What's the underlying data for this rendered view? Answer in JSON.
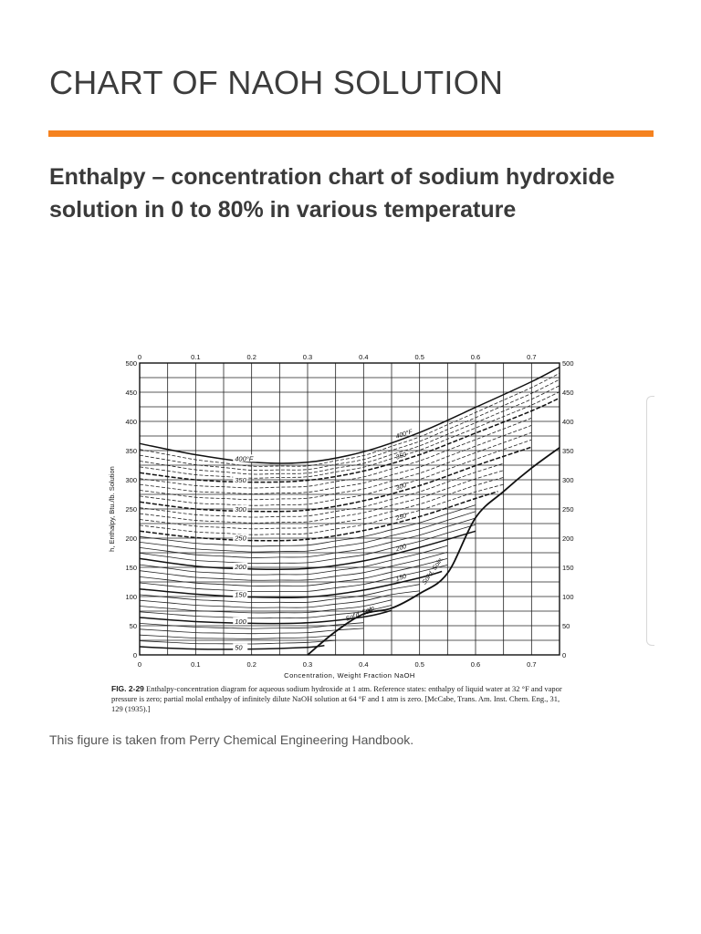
{
  "page": {
    "title": "CHART OF NAOH SOLUTION",
    "subtitle": "Enthalpy – concentration chart of sodium hydroxide solution in 0 to 80% in various temperature",
    "source_note": "This figure is taken from Perry Chemical Engineering Handbook.",
    "accent_color": "#f5821f"
  },
  "caption": {
    "figure_number": "FIG. 2-29",
    "text": "Enthalpy-concentration diagram for aqueous sodium hydroxide at 1 atm. Reference states: enthalpy of liquid water at 32 °F and vapor pressure is zero; partial molal enthalpy of infinitely dilute NaOH solution at 64 °F and 1 atm is zero. [McCabe, Trans. Am. Inst. Chem. Eng., 31, 129 (1935).]"
  },
  "chart_data": {
    "type": "line",
    "title": "",
    "xlabel": "Concentration, Weight Fraction NaOH",
    "ylabel": "h, Enthalpy, Btu./lb. Solution",
    "xlim": [
      0,
      0.75
    ],
    "ylim": [
      0,
      500
    ],
    "x_ticks": [
      "0",
      "0.1",
      "0.2",
      "0.3",
      "0.4",
      "0.5",
      "0.6",
      "0.7"
    ],
    "y_ticks": [
      "0",
      "50",
      "100",
      "150",
      "200",
      "250",
      "300",
      "350",
      "400",
      "450",
      "500"
    ],
    "grid": true,
    "isotherm_labels": [
      "400°F",
      "350",
      "300",
      "250",
      "200",
      "150",
      "100",
      "50"
    ],
    "solid_boundary_labels": [
      "Sol'd. Soln.",
      "Sol'd. Soln."
    ],
    "series": [
      {
        "temp": 50,
        "label": "50",
        "x": [
          0,
          0.1,
          0.2,
          0.3,
          0.33
        ],
        "y": [
          14,
          10,
          10,
          13,
          16
        ]
      },
      {
        "temp": 100,
        "label": "100",
        "x": [
          0,
          0.1,
          0.2,
          0.3,
          0.4,
          0.45
        ],
        "y": [
          64,
          57,
          54,
          55,
          65,
          76
        ]
      },
      {
        "temp": 150,
        "label": "150",
        "x": [
          0,
          0.1,
          0.2,
          0.3,
          0.4,
          0.5,
          0.54
        ],
        "y": [
          113,
          104,
          99,
          99,
          111,
          132,
          143
        ]
      },
      {
        "temp": 200,
        "label": "200",
        "x": [
          0,
          0.1,
          0.2,
          0.3,
          0.4,
          0.5,
          0.6
        ],
        "y": [
          165,
          152,
          147,
          148,
          161,
          184,
          212
        ]
      },
      {
        "temp": 250,
        "label": "250",
        "x": [
          0,
          0.1,
          0.2,
          0.3,
          0.4,
          0.5,
          0.6,
          0.64
        ],
        "y": [
          212,
          201,
          196,
          198,
          213,
          237,
          268,
          280
        ]
      },
      {
        "temp": 300,
        "label": "300",
        "x": [
          0,
          0.1,
          0.2,
          0.3,
          0.4,
          0.5,
          0.6,
          0.7
        ],
        "y": [
          262,
          250,
          246,
          248,
          264,
          290,
          324,
          356
        ]
      },
      {
        "temp": 350,
        "label": "350",
        "x": [
          0,
          0.1,
          0.2,
          0.3,
          0.4,
          0.5,
          0.6,
          0.7,
          0.75
        ],
        "y": [
          312,
          300,
          296,
          299,
          315,
          343,
          380,
          418,
          440
        ]
      },
      {
        "temp": 400,
        "label": "400°F",
        "x": [
          0,
          0.1,
          0.2,
          0.3,
          0.4,
          0.5,
          0.6,
          0.7,
          0.75
        ],
        "y": [
          362,
          343,
          330,
          330,
          348,
          381,
          424,
          468,
          493
        ]
      }
    ],
    "solid_boundary": {
      "x": [
        0.3,
        0.35,
        0.4,
        0.45,
        0.5,
        0.55,
        0.6,
        0.65,
        0.7,
        0.75
      ],
      "y": [
        0,
        40,
        70,
        80,
        105,
        140,
        235,
        280,
        320,
        355
      ]
    }
  }
}
